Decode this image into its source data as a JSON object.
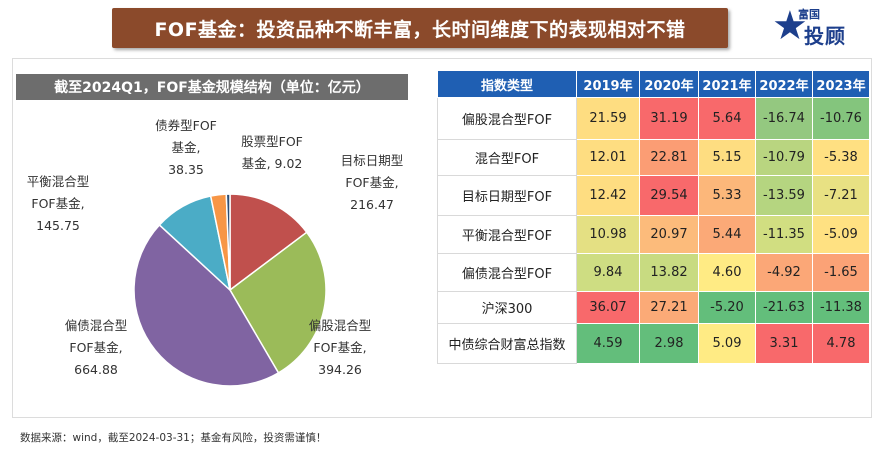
{
  "header": {
    "title": "FOF基金：投资品种不断丰富，长时间维度下的表现相对不错",
    "logo_small": "富国",
    "logo_big": "投顾"
  },
  "left_panel": {
    "title": "截至2024Q1，FOF基金规模结构（单位：亿元）"
  },
  "chart_data": [
    {
      "type": "pie",
      "title": "截至2024Q1，FOF基金规模结构（单位：亿元）",
      "slices": [
        {
          "name": "目标日期型FOF基金",
          "value": 216.47,
          "label_lines": [
            "目标日期型",
            "FOF基金,",
            "216.47"
          ],
          "color": "#c0504d"
        },
        {
          "name": "偏股混合型FOF基金",
          "value": 394.26,
          "label_lines": [
            "偏股混合型",
            "FOF基金,",
            "394.26"
          ],
          "color": "#9bbb59"
        },
        {
          "name": "偏债混合型FOF基金",
          "value": 664.88,
          "label_lines": [
            "偏债混合型",
            "FOF基金,",
            "664.88"
          ],
          "color": "#8064a2"
        },
        {
          "name": "平衡混合型FOF基金",
          "value": 145.75,
          "label_lines": [
            "平衡混合型",
            "FOF基金,",
            "145.75"
          ],
          "color": "#4bacc6"
        },
        {
          "name": "债券型FOF基金",
          "value": 38.35,
          "label_lines": [
            "债券型FOF",
            "基金,",
            "38.35"
          ],
          "color": "#f79646"
        },
        {
          "name": "股票型FOF基金",
          "value": 9.02,
          "label_lines": [
            "股票型FOF",
            "基金, 9.02"
          ],
          "color": "#2c4d75"
        }
      ]
    },
    {
      "type": "table",
      "columns": [
        "指数类型",
        "2019年",
        "2020年",
        "2021年",
        "2022年",
        "2023年"
      ],
      "rows": [
        {
          "label": "偏股混合型FOF",
          "values": [
            "21.59",
            "31.19",
            "5.64",
            "-16.74",
            "-10.76"
          ],
          "colors": [
            "#fedd81",
            "#f8696b",
            "#f8696b",
            "#94c880",
            "#84c57d"
          ]
        },
        {
          "label": "混合型FOF",
          "values": [
            "12.01",
            "22.81",
            "5.15",
            "-10.79",
            "-5.38"
          ],
          "colors": [
            "#fedd81",
            "#fb9d74",
            "#fedd81",
            "#b9d580",
            "#ffe082"
          ]
        },
        {
          "label": "目标日期型FOF",
          "values": [
            "12.42",
            "29.54",
            "5.33",
            "-13.59",
            "-7.21"
          ],
          "colors": [
            "#fedd81",
            "#f8696b",
            "#fcb77a",
            "#b5d580",
            "#e8e183"
          ]
        },
        {
          "label": "平衡混合型FOF",
          "values": [
            "10.98",
            "20.97",
            "5.44",
            "-11.35",
            "-5.09"
          ],
          "colors": [
            "#e4e083",
            "#fcbb7b",
            "#fba977",
            "#d1de81",
            "#ffe182"
          ]
        },
        {
          "label": "偏债混合型FOF",
          "values": [
            "9.84",
            "13.82",
            "4.60",
            "-4.92",
            "-1.65"
          ],
          "colors": [
            "#cedd82",
            "#c8db81",
            "#ffeb84",
            "#fba777",
            "#fba276"
          ]
        },
        {
          "label": "沪深300",
          "values": [
            "36.07",
            "27.21",
            "-5.20",
            "-21.63",
            "-11.38"
          ],
          "colors": [
            "#f8696b",
            "#fbaa77",
            "#63be7b",
            "#63be7b",
            "#63be7b"
          ]
        },
        {
          "label": "中债综合财富总指数",
          "values": [
            "4.59",
            "2.98",
            "5.09",
            "3.31",
            "4.78"
          ],
          "colors": [
            "#63be7b",
            "#63be7b",
            "#ffeb84",
            "#f8696b",
            "#f8696b"
          ]
        }
      ]
    }
  ],
  "footer": {
    "source": "数据来源：wind，截至2024-03-31；基金有风险，投资需谨慎！"
  }
}
